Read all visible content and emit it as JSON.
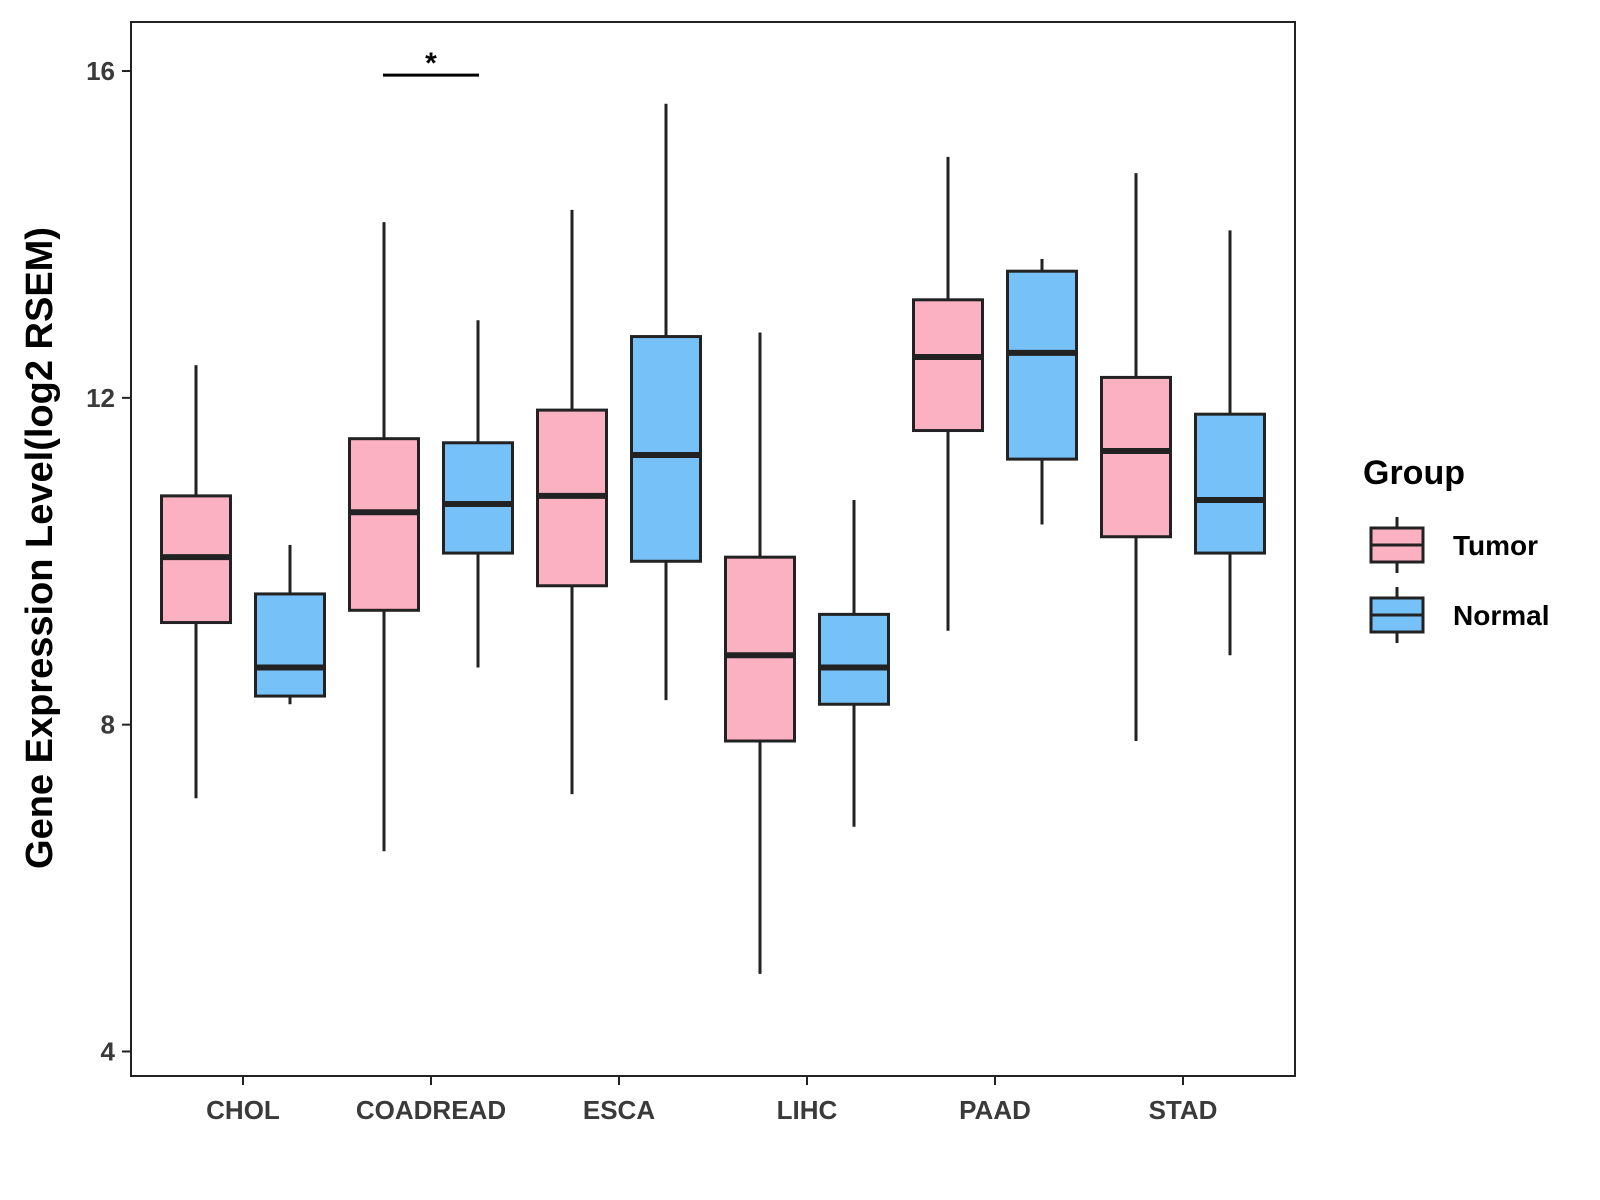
{
  "chart_data": {
    "type": "boxplot",
    "title": "",
    "xlabel": "",
    "ylabel": "Gene Expression Level(log2 RSEM)",
    "ylim": [
      3.7,
      16.6
    ],
    "yticks": [
      4,
      8,
      12,
      16
    ],
    "categories": [
      "CHOL",
      "COADREAD",
      "ESCA",
      "LIHC",
      "PAAD",
      "STAD"
    ],
    "legend": {
      "title": "Group",
      "position": "right"
    },
    "series": [
      {
        "name": "Tumor",
        "color": "#FCB1C3",
        "boxes": [
          {
            "category": "CHOL",
            "min": 7.1,
            "q1": 9.25,
            "median": 10.05,
            "q3": 10.8,
            "max": 12.4
          },
          {
            "category": "COADREAD",
            "min": 6.45,
            "q1": 9.4,
            "median": 10.6,
            "q3": 11.5,
            "max": 14.15
          },
          {
            "category": "ESCA",
            "min": 7.15,
            "q1": 9.7,
            "median": 10.8,
            "q3": 11.85,
            "max": 14.3
          },
          {
            "category": "LIHC",
            "min": 4.95,
            "q1": 7.8,
            "median": 8.85,
            "q3": 10.05,
            "max": 12.8
          },
          {
            "category": "PAAD",
            "min": 9.15,
            "q1": 11.6,
            "median": 12.5,
            "q3": 13.2,
            "max": 14.95
          },
          {
            "category": "STAD",
            "min": 7.8,
            "q1": 10.3,
            "median": 11.35,
            "q3": 12.25,
            "max": 14.75
          }
        ]
      },
      {
        "name": "Normal",
        "color": "#76C1F8",
        "boxes": [
          {
            "category": "CHOL",
            "min": 8.25,
            "q1": 8.35,
            "median": 8.7,
            "q3": 9.6,
            "max": 10.2
          },
          {
            "category": "COADREAD",
            "min": 8.7,
            "q1": 10.1,
            "median": 10.7,
            "q3": 11.45,
            "max": 12.95
          },
          {
            "category": "ESCA",
            "min": 8.3,
            "q1": 10.0,
            "median": 11.3,
            "q3": 12.75,
            "max": 15.6
          },
          {
            "category": "LIHC",
            "min": 6.75,
            "q1": 8.25,
            "median": 8.7,
            "q3": 9.35,
            "max": 10.75
          },
          {
            "category": "PAAD",
            "min": 10.45,
            "q1": 11.25,
            "median": 12.55,
            "q3": 13.55,
            "max": 13.7
          },
          {
            "category": "STAD",
            "min": 8.85,
            "q1": 10.1,
            "median": 10.75,
            "q3": 11.8,
            "max": 14.05
          }
        ]
      }
    ],
    "annotations": [
      {
        "category": "COADREAD",
        "label": "*",
        "y": 15.95
      }
    ]
  }
}
